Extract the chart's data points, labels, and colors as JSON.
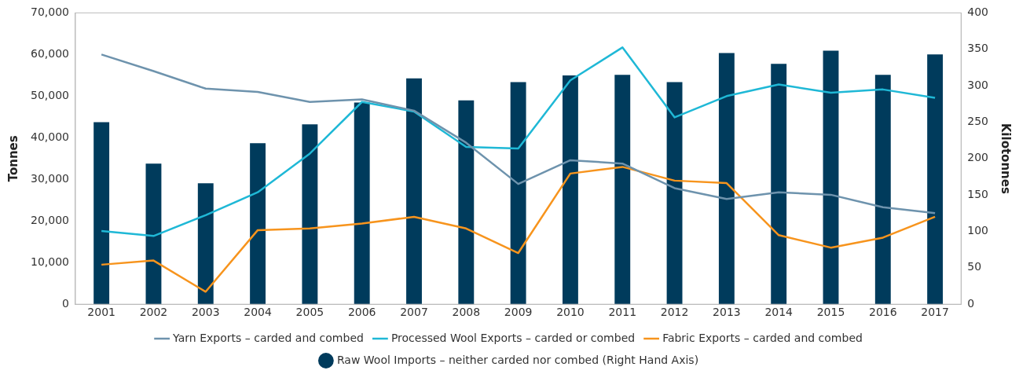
{
  "chart_data": {
    "type": "bar",
    "categories": [
      "2001",
      "2002",
      "2003",
      "2004",
      "2005",
      "2006",
      "2007",
      "2008",
      "2009",
      "2010",
      "2011",
      "2012",
      "2013",
      "2014",
      "2015",
      "2016",
      "2017"
    ],
    "ylabel": "Tonnes",
    "y2label": "Kilotonnes",
    "ylim": [
      0,
      70000
    ],
    "yticks": [
      {
        "value": 0,
        "label": "0"
      },
      {
        "value": 10000,
        "label": "10,000"
      },
      {
        "value": 20000,
        "label": "20,000"
      },
      {
        "value": 30000,
        "label": "30,000"
      },
      {
        "value": 40000,
        "label": "40,000"
      },
      {
        "value": 50000,
        "label": "50,000"
      },
      {
        "value": 60000,
        "label": "60,000"
      },
      {
        "value": 70000,
        "label": "70,000"
      }
    ],
    "y2lim": [
      0,
      400
    ],
    "y2ticks": [
      0,
      50,
      100,
      150,
      200,
      250,
      300,
      350,
      400
    ],
    "grid": false,
    "legend": "bottom",
    "series": [
      {
        "name": "Yarn Exports – carded and combed",
        "type": "line",
        "color": "#6e93ad",
        "values": [
          60000,
          56000,
          51800,
          51000,
          48600,
          49200,
          46500,
          38800,
          28900,
          34600,
          33800,
          27900,
          25300,
          26900,
          26300,
          23300,
          21900
        ]
      },
      {
        "name": "Processed Wool Exports – carded or combed",
        "type": "line",
        "color": "#1fb8d6",
        "values": [
          17600,
          16400,
          21400,
          26900,
          36200,
          48600,
          46300,
          37800,
          37400,
          53800,
          61700,
          44900,
          50000,
          52800,
          50800,
          51600,
          49600
        ]
      },
      {
        "name": "Fabric Exports – carded and combed",
        "type": "line",
        "color": "#f7941d",
        "values": [
          9500,
          10500,
          3000,
          17800,
          18200,
          19400,
          21000,
          18200,
          12300,
          31400,
          33000,
          29700,
          29100,
          16600,
          13600,
          16000,
          21000
        ]
      },
      {
        "name": "Raw Wool Imports – neither carded nor combed (Right Hand Axis)",
        "axis": "y2",
        "color": "#003b5c",
        "values": [
          250,
          193,
          166,
          221,
          247,
          277,
          310,
          280,
          305,
          314,
          315,
          305,
          345,
          330,
          348,
          315,
          343
        ]
      }
    ]
  }
}
